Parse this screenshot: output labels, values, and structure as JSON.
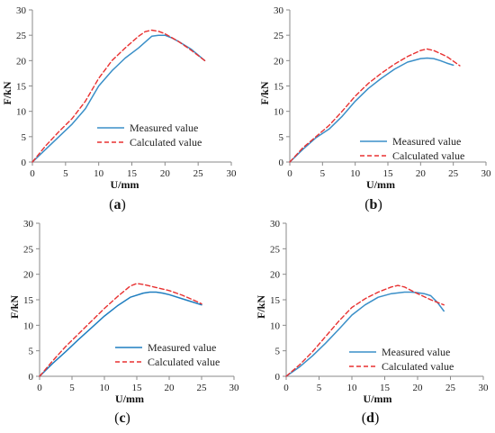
{
  "chart_data": [
    {
      "type": "line",
      "panel_label": "a",
      "xlabel": "U/mm",
      "ylabel": "F/kN",
      "xlim": [
        0,
        30
      ],
      "ylim": [
        0,
        30
      ],
      "xticks": [
        "0",
        "5",
        "10",
        "15",
        "20",
        "25",
        "30"
      ],
      "yticks": [
        "0",
        "5",
        "10",
        "15",
        "20",
        "25",
        "30"
      ],
      "legend_position": "bottom-right",
      "grid": false,
      "series": [
        {
          "name": "Measured value",
          "color": "#3a8fc8",
          "style": "solid",
          "x": [
            0,
            2,
            4,
            6,
            8,
            10,
            12,
            14,
            16,
            18,
            19,
            20,
            21,
            22,
            24,
            26
          ],
          "y": [
            0,
            2.5,
            5,
            7.5,
            10.5,
            15,
            18,
            20.5,
            22.5,
            24.8,
            25,
            25,
            24.5,
            23.8,
            22.2,
            20
          ]
        },
        {
          "name": "Calculated value",
          "color": "#e83030",
          "style": "dashed",
          "x": [
            0,
            2,
            4,
            6,
            8,
            10,
            12,
            14,
            16,
            17,
            18,
            19,
            20,
            22,
            24,
            26
          ],
          "y": [
            0,
            3.2,
            6,
            8.6,
            12,
            16.5,
            20,
            22.5,
            24.8,
            25.7,
            26,
            25.8,
            25.3,
            23.8,
            22,
            20
          ]
        }
      ]
    },
    {
      "type": "line",
      "panel_label": "b",
      "xlabel": "U/mm",
      "ylabel": "F/kN",
      "xlim": [
        0,
        30
      ],
      "ylim": [
        0,
        30
      ],
      "xticks": [
        "0",
        "5",
        "10",
        "15",
        "20",
        "25",
        "30"
      ],
      "yticks": [
        "0",
        "5",
        "10",
        "15",
        "20",
        "25",
        "30"
      ],
      "legend_position": "bottom-right",
      "grid": false,
      "series": [
        {
          "name": "Measured value",
          "color": "#3a8fc8",
          "style": "solid",
          "x": [
            0,
            2,
            4,
            6,
            8,
            10,
            12,
            14,
            16,
            18,
            20,
            21,
            22,
            23,
            24,
            25
          ],
          "y": [
            0,
            2.5,
            4.8,
            6.5,
            9,
            12,
            14.5,
            16.5,
            18.3,
            19.7,
            20.4,
            20.5,
            20.4,
            20,
            19.5,
            19.1
          ]
        },
        {
          "name": "Calculated value",
          "color": "#e83030",
          "style": "dashed",
          "x": [
            0,
            2,
            4,
            6,
            8,
            10,
            12,
            14,
            16,
            18,
            20,
            21,
            22,
            24,
            26
          ],
          "y": [
            0,
            2.8,
            5,
            7.2,
            10,
            13,
            15.5,
            17.5,
            19.3,
            20.8,
            22,
            22.3,
            22,
            20.8,
            19
          ]
        }
      ]
    },
    {
      "type": "line",
      "panel_label": "c",
      "xlabel": "U/mm",
      "ylabel": "F/kN",
      "xlim": [
        0,
        30
      ],
      "ylim": [
        0,
        30
      ],
      "xticks": [
        "0",
        "5",
        "10",
        "15",
        "20",
        "25",
        "30"
      ],
      "yticks": [
        "0",
        "5",
        "10",
        "15",
        "20",
        "25",
        "30"
      ],
      "legend_position": "bottom-right",
      "grid": false,
      "series": [
        {
          "name": "Measured value",
          "color": "#1f7ec0",
          "style": "solid",
          "x": [
            0,
            2,
            4,
            6,
            8,
            10,
            12,
            14,
            16,
            17,
            18,
            19,
            20,
            22,
            24,
            25
          ],
          "y": [
            0,
            2.5,
            4.8,
            7.2,
            9.5,
            11.8,
            13.8,
            15.5,
            16.3,
            16.5,
            16.5,
            16.3,
            16,
            15.2,
            14.4,
            14
          ]
        },
        {
          "name": "Calculated value",
          "color": "#e83030",
          "style": "dashed",
          "x": [
            0,
            2,
            4,
            6,
            8,
            10,
            12,
            14,
            15,
            16,
            18,
            20,
            22,
            24,
            25
          ],
          "y": [
            0,
            3,
            5.8,
            8.3,
            10.8,
            13.3,
            15.6,
            17.7,
            18.2,
            18,
            17.4,
            16.8,
            15.9,
            14.8,
            14.2
          ]
        }
      ]
    },
    {
      "type": "line",
      "panel_label": "d",
      "xlabel": "U/mm",
      "ylabel": "F/kN",
      "xlim": [
        0,
        30
      ],
      "ylim": [
        0,
        30
      ],
      "xticks": [
        "0",
        "5",
        "10",
        "15",
        "20",
        "25",
        "30"
      ],
      "yticks": [
        "0",
        "5",
        "10",
        "15",
        "20",
        "25",
        "30"
      ],
      "legend_position": "bottom-right",
      "grid": false,
      "series": [
        {
          "name": "Measured value",
          "color": "#3a8fc8",
          "style": "solid",
          "x": [
            0,
            2,
            4,
            6,
            8,
            10,
            12,
            14,
            16,
            18,
            19,
            20,
            21,
            22,
            23,
            24
          ],
          "y": [
            0,
            1.8,
            4,
            6.5,
            9.2,
            12,
            14,
            15.5,
            16.2,
            16.5,
            16.5,
            16.4,
            16.2,
            15.8,
            14.5,
            12.8
          ]
        },
        {
          "name": "Calculated value",
          "color": "#e83030",
          "style": "dashed",
          "x": [
            0,
            2,
            4,
            6,
            8,
            10,
            12,
            14,
            16,
            17,
            18,
            20,
            22,
            24
          ],
          "y": [
            0,
            2.2,
            4.8,
            7.8,
            10.8,
            13.5,
            15.2,
            16.5,
            17.5,
            17.8,
            17.5,
            16.2,
            15,
            14
          ]
        }
      ]
    }
  ]
}
